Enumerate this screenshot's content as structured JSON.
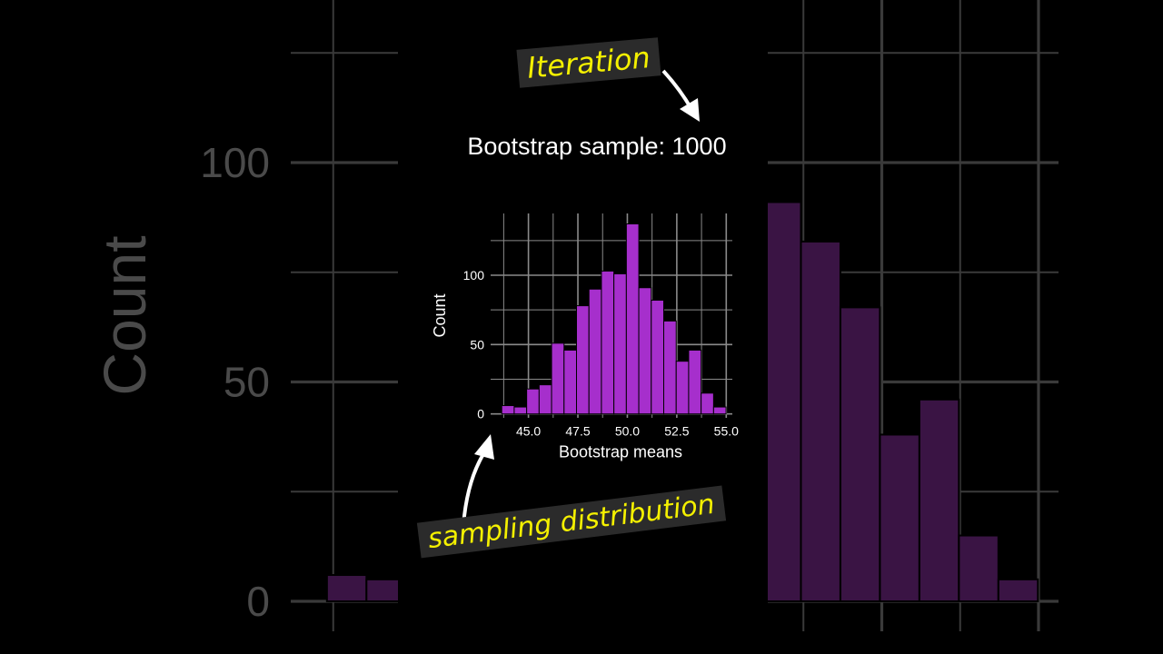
{
  "chart_data": {
    "type": "bar",
    "title": "Bootstrap sample: 1000",
    "xlabel": "Bootstrap means",
    "ylabel": "Count",
    "bin_start": 43.65,
    "bin_width": 0.63,
    "values": [
      6,
      5,
      18,
      21,
      51,
      46,
      78,
      90,
      103,
      101,
      137,
      91,
      82,
      67,
      38,
      46,
      15,
      5
    ],
    "xlim": [
      43.3,
      55.3
    ],
    "ylim": [
      0,
      140
    ],
    "xticks": [
      "45.0",
      "47.5",
      "50.0",
      "52.5",
      "55.0"
    ],
    "xtick_values": [
      45,
      47.5,
      50,
      52.5,
      55
    ],
    "yticks": [
      "0",
      "50",
      "100"
    ],
    "ytick_values": [
      0,
      50,
      100
    ],
    "grid": true,
    "bar_color": "#a62fcc",
    "background": "#000000"
  },
  "annotations": {
    "iteration": "Iteration",
    "sampling": "sampling distribution",
    "color": "#f4f000"
  }
}
